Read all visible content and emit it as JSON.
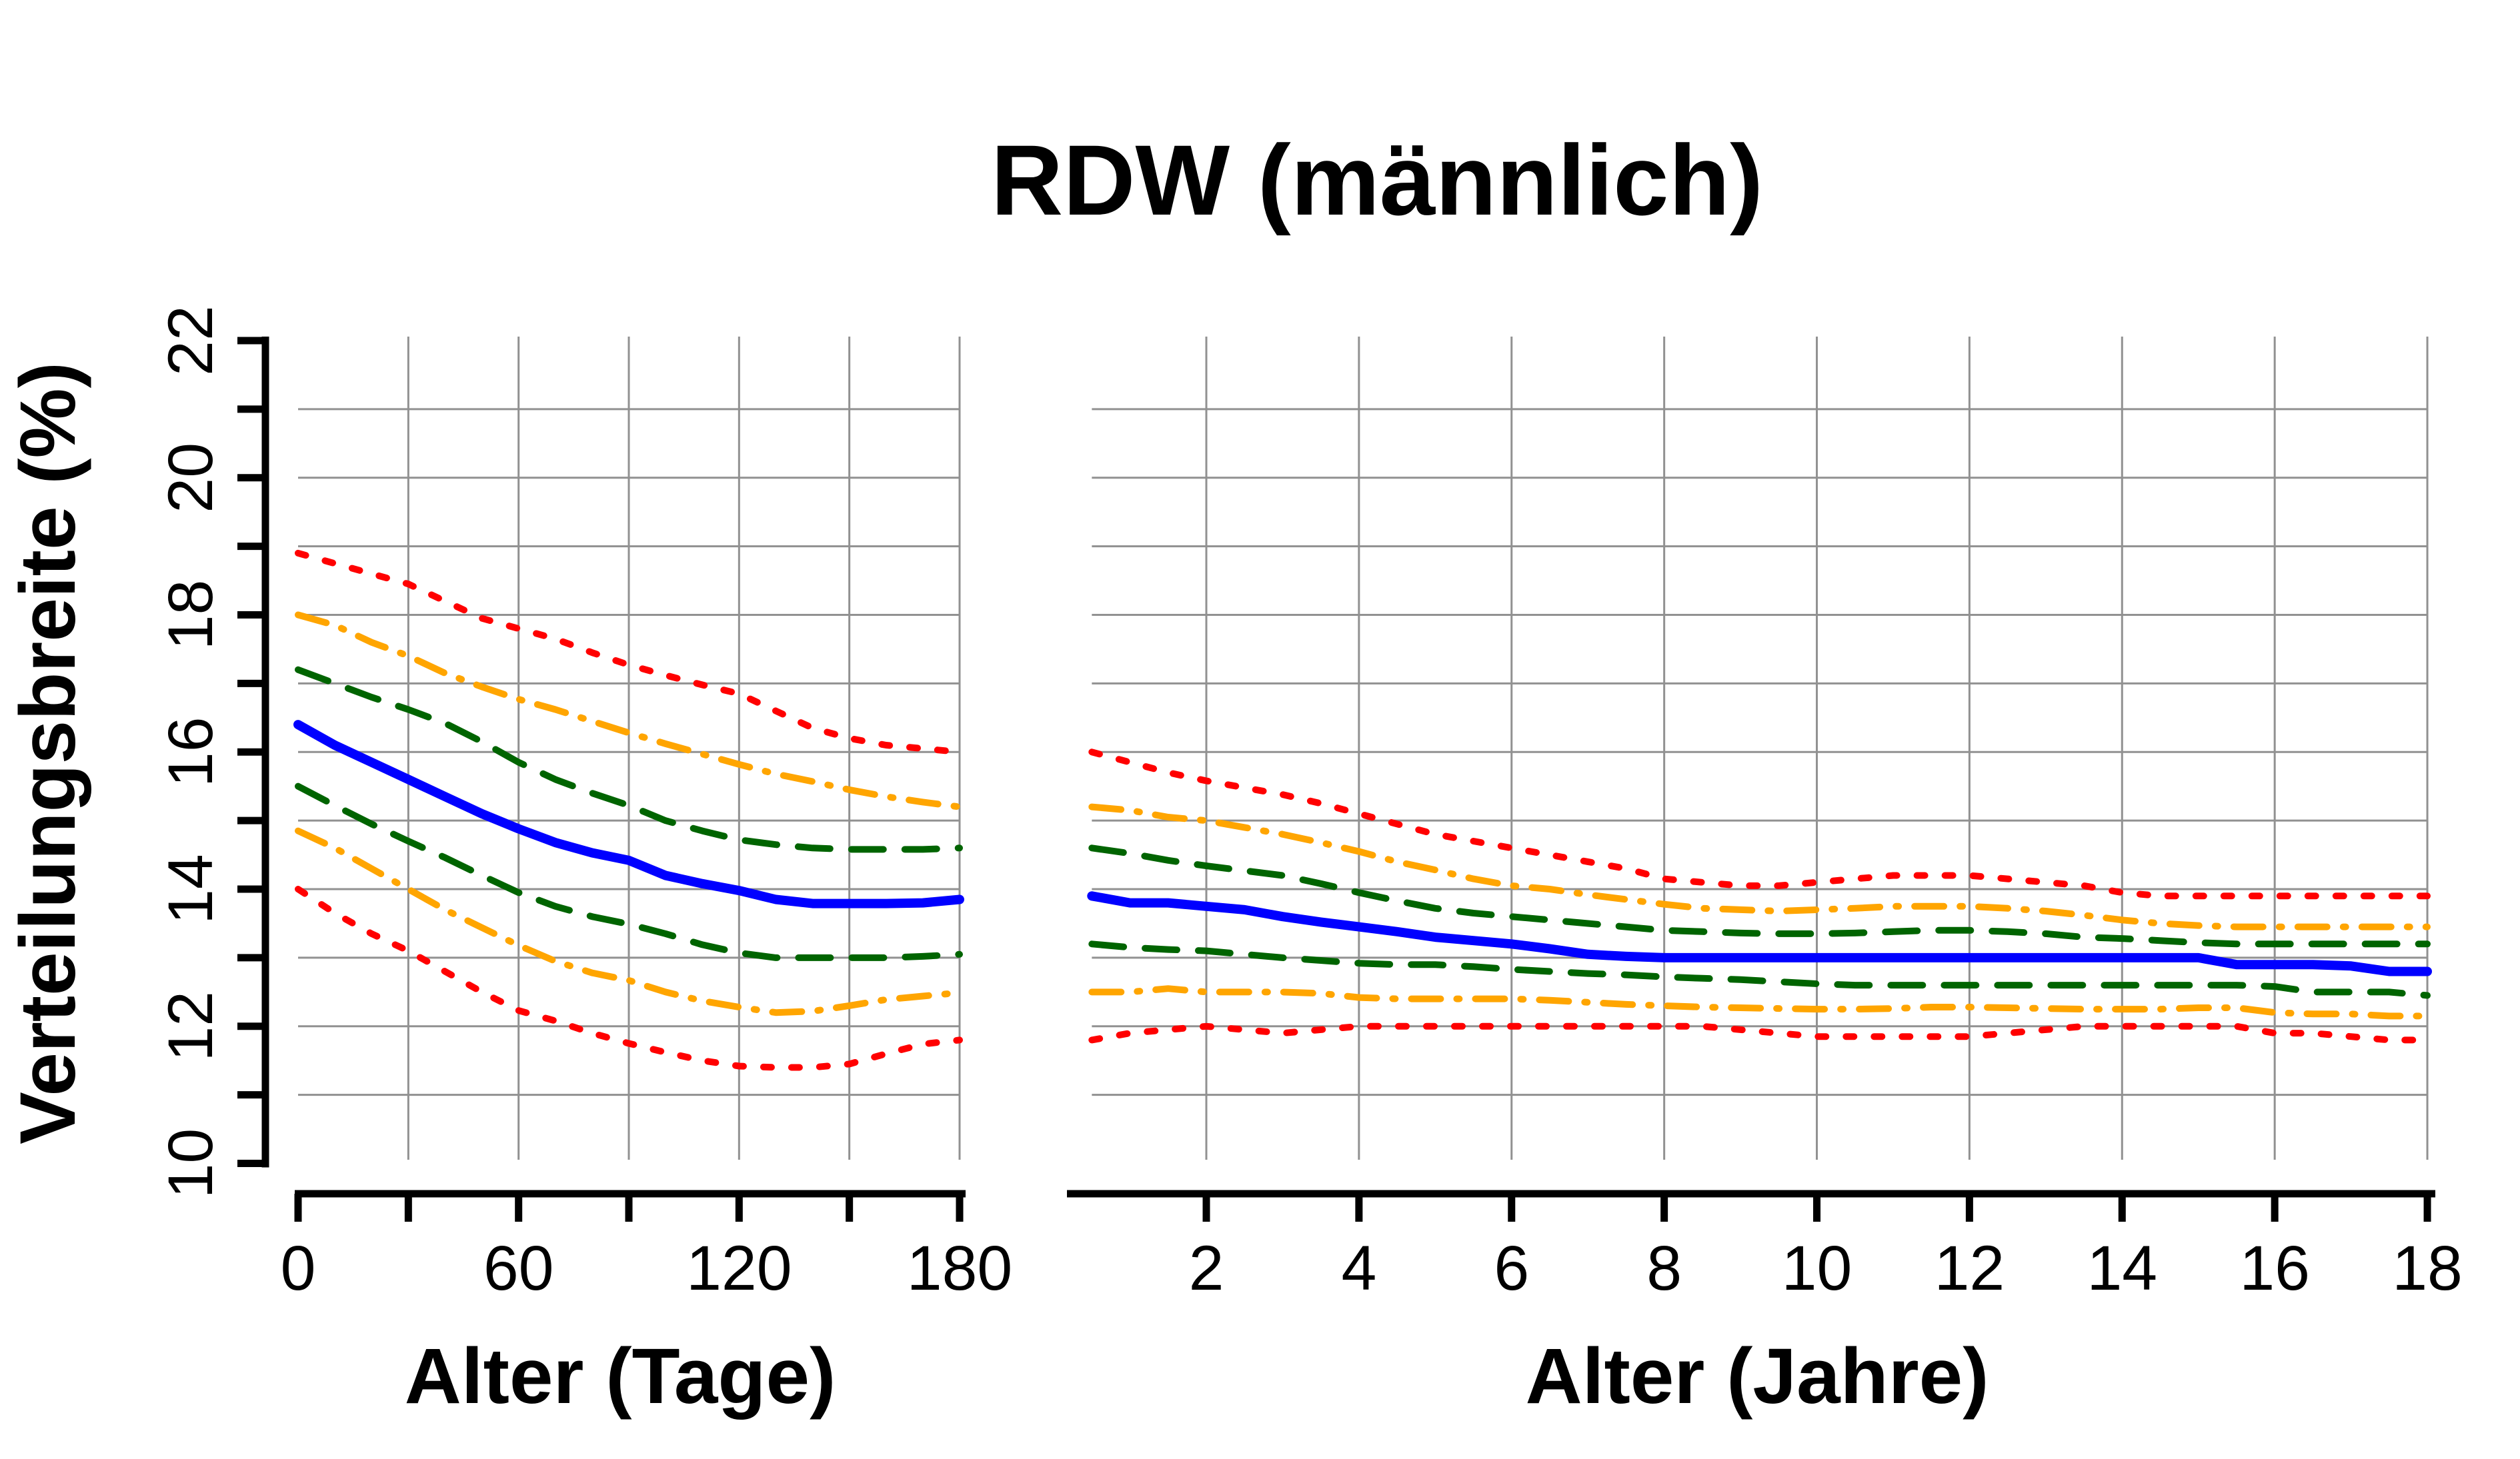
{
  "chart_data": {
    "type": "line",
    "title": "RDW (männlich)",
    "ylabel": "Verteilungsbreite (%)",
    "ylim": [
      10,
      22
    ],
    "grid": true,
    "background": "#ffffff",
    "grid_color": "#919191",
    "axis_color": "#000000",
    "yticks": [
      10,
      11,
      12,
      13,
      14,
      15,
      16,
      17,
      18,
      19,
      20,
      21,
      22
    ],
    "ytick_labels": [
      "10",
      "",
      "12",
      "",
      "14",
      "",
      "16",
      "",
      "18",
      "",
      "20",
      "",
      "22"
    ],
    "ygrid_values": [
      11,
      12,
      13,
      14,
      15,
      16,
      17,
      18,
      19,
      20,
      21
    ],
    "series_styles": [
      {
        "name": "red-dotted-upper",
        "color": "#ff0000",
        "linetype": "dotted",
        "width": 10
      },
      {
        "name": "orange-dashdot-upper",
        "color": "#ffa500",
        "linetype": "dotdash",
        "width": 10
      },
      {
        "name": "green-dashed-upper",
        "color": "#006400",
        "linetype": "dashed",
        "width": 10
      },
      {
        "name": "blue-solid-median",
        "color": "#0000ff",
        "linetype": "solid",
        "width": 14
      },
      {
        "name": "green-dashed-lower",
        "color": "#006400",
        "linetype": "dashed",
        "width": 10
      },
      {
        "name": "orange-dashdot-lower",
        "color": "#ffa500",
        "linetype": "dotdash",
        "width": 10
      },
      {
        "name": "red-dotted-lower",
        "color": "#ff0000",
        "linetype": "dotted",
        "width": 10
      }
    ],
    "panels": [
      {
        "name": "left-panel-days",
        "xlabel": "Alter (Tage)",
        "xticks": [
          0,
          30,
          60,
          90,
          120,
          150,
          180
        ],
        "xtick_labels": [
          "0",
          "",
          "60",
          "",
          "120",
          "",
          "180"
        ],
        "xgrid_values": [
          30,
          60,
          90,
          120,
          150,
          180
        ],
        "x": [
          0,
          10,
          20,
          30,
          40,
          50,
          60,
          70,
          80,
          90,
          100,
          110,
          120,
          130,
          140,
          150,
          160,
          170,
          180
        ],
        "series": [
          {
            "name": "red-dotted-upper",
            "values": [
              18.9,
              18.75,
              18.6,
              18.45,
              18.2,
              17.95,
              17.8,
              17.65,
              17.45,
              17.27,
              17.12,
              16.98,
              16.85,
              16.6,
              16.35,
              16.2,
              16.1,
              16.05,
              16.0
            ]
          },
          {
            "name": "orange-dashdot-upper",
            "values": [
              18.0,
              17.85,
              17.6,
              17.4,
              17.15,
              16.95,
              16.77,
              16.62,
              16.45,
              16.28,
              16.12,
              15.97,
              15.82,
              15.68,
              15.57,
              15.45,
              15.35,
              15.27,
              15.2
            ]
          },
          {
            "name": "green-dashed-upper",
            "values": [
              17.2,
              17.0,
              16.8,
              16.62,
              16.42,
              16.15,
              15.85,
              15.6,
              15.4,
              15.22,
              15.0,
              14.85,
              14.72,
              14.65,
              14.6,
              14.58,
              14.58,
              14.58,
              14.6
            ]
          },
          {
            "name": "blue-solid-median",
            "values": [
              16.4,
              16.1,
              15.85,
              15.6,
              15.35,
              15.1,
              14.88,
              14.68,
              14.53,
              14.42,
              14.2,
              14.08,
              13.98,
              13.85,
              13.79,
              13.79,
              13.79,
              13.8,
              13.85
            ]
          },
          {
            "name": "green-dashed-lower",
            "values": [
              15.5,
              15.22,
              14.95,
              14.7,
              14.46,
              14.2,
              13.95,
              13.75,
              13.6,
              13.49,
              13.35,
              13.19,
              13.07,
              13.0,
              13.0,
              13.0,
              13.0,
              13.02,
              13.05
            ]
          },
          {
            "name": "orange-dashdot-lower",
            "values": [
              14.85,
              14.6,
              14.3,
              14.0,
              13.7,
              13.44,
              13.18,
              12.95,
              12.78,
              12.67,
              12.5,
              12.37,
              12.28,
              12.2,
              12.22,
              12.3,
              12.39,
              12.44,
              12.49
            ]
          },
          {
            "name": "red-dotted-lower",
            "values": [
              14.0,
              13.65,
              13.35,
              13.1,
              12.8,
              12.5,
              12.23,
              12.08,
              11.9,
              11.75,
              11.62,
              11.5,
              11.42,
              11.4,
              11.4,
              11.45,
              11.6,
              11.74,
              11.8
            ]
          }
        ]
      },
      {
        "name": "right-panel-years",
        "xlabel": "Alter (Jahre)",
        "xticks": [
          2,
          4,
          6,
          8,
          10,
          12,
          14,
          16,
          18
        ],
        "xtick_labels": [
          "2",
          "4",
          "6",
          "8",
          "10",
          "12",
          "14",
          "16",
          "18"
        ],
        "xgrid_values": [
          2,
          4,
          6,
          8,
          10,
          12,
          14,
          16,
          18
        ],
        "x": [
          0.5,
          1,
          1.5,
          2,
          2.5,
          3,
          3.5,
          4,
          4.5,
          5,
          5.5,
          6,
          6.5,
          7,
          7.5,
          8,
          8.5,
          9,
          9.5,
          10,
          10.5,
          11,
          11.5,
          12,
          12.5,
          13,
          13.5,
          14,
          14.5,
          15,
          15.5,
          16,
          16.5,
          17,
          17.5,
          18
        ],
        "series": [
          {
            "name": "red-dotted-upper",
            "values": [
              16.0,
              15.85,
              15.7,
              15.58,
              15.48,
              15.38,
              15.25,
              15.1,
              14.95,
              14.8,
              14.7,
              14.6,
              14.5,
              14.4,
              14.3,
              14.15,
              14.1,
              14.05,
              14.05,
              14.1,
              14.15,
              14.2,
              14.2,
              14.2,
              14.15,
              14.1,
              14.05,
              13.95,
              13.9,
              13.9,
              13.9,
              13.9,
              13.9,
              13.9,
              13.9,
              13.9
            ]
          },
          {
            "name": "orange-dashdot-upper",
            "values": [
              15.2,
              15.15,
              15.05,
              15.0,
              14.9,
              14.8,
              14.68,
              14.55,
              14.4,
              14.28,
              14.15,
              14.05,
              14.0,
              13.92,
              13.85,
              13.78,
              13.72,
              13.7,
              13.68,
              13.7,
              13.72,
              13.75,
              13.75,
              13.75,
              13.72,
              13.68,
              13.62,
              13.55,
              13.5,
              13.47,
              13.45,
              13.45,
              13.45,
              13.45,
              13.45,
              13.45
            ]
          },
          {
            "name": "green-dashed-upper",
            "values": [
              14.6,
              14.52,
              14.42,
              14.34,
              14.27,
              14.2,
              14.08,
              13.95,
              13.83,
              13.72,
              13.65,
              13.6,
              13.55,
              13.5,
              13.45,
              13.4,
              13.38,
              13.36,
              13.35,
              13.35,
              13.36,
              13.38,
              13.4,
              13.4,
              13.38,
              13.35,
              13.3,
              13.28,
              13.25,
              13.22,
              13.2,
              13.2,
              13.2,
              13.2,
              13.2,
              13.2
            ]
          },
          {
            "name": "blue-solid-median",
            "values": [
              13.9,
              13.8,
              13.8,
              13.75,
              13.7,
              13.6,
              13.52,
              13.45,
              13.38,
              13.3,
              13.25,
              13.2,
              13.13,
              13.05,
              13.02,
              13.0,
              13.0,
              13.0,
              13.0,
              13.0,
              13.0,
              13.0,
              13.0,
              13.0,
              13.0,
              13.0,
              13.0,
              13.0,
              13.0,
              13.0,
              12.9,
              12.9,
              12.9,
              12.88,
              12.8,
              12.8
            ]
          },
          {
            "name": "green-dashed-lower",
            "values": [
              13.2,
              13.15,
              13.12,
              13.1,
              13.05,
              13.0,
              12.96,
              12.92,
              12.9,
              12.9,
              12.87,
              12.83,
              12.8,
              12.77,
              12.75,
              12.72,
              12.7,
              12.68,
              12.65,
              12.62,
              12.6,
              12.6,
              12.6,
              12.6,
              12.6,
              12.6,
              12.6,
              12.6,
              12.6,
              12.6,
              12.6,
              12.58,
              12.5,
              12.5,
              12.5,
              12.45
            ]
          },
          {
            "name": "orange-dashdot-lower",
            "values": [
              12.5,
              12.5,
              12.55,
              12.5,
              12.5,
              12.5,
              12.48,
              12.42,
              12.4,
              12.4,
              12.4,
              12.4,
              12.38,
              12.35,
              12.32,
              12.3,
              12.28,
              12.27,
              12.26,
              12.25,
              12.25,
              12.26,
              12.28,
              12.28,
              12.27,
              12.26,
              12.25,
              12.25,
              12.25,
              12.27,
              12.27,
              12.2,
              12.18,
              12.18,
              12.15,
              12.15
            ]
          },
          {
            "name": "red-dotted-lower",
            "values": [
              11.8,
              11.9,
              11.95,
              12.0,
              11.95,
              11.9,
              11.95,
              12.0,
              12.0,
              12.0,
              12.0,
              12.0,
              12.0,
              12.0,
              12.0,
              12.0,
              12.0,
              11.95,
              11.9,
              11.85,
              11.85,
              11.85,
              11.85,
              11.85,
              11.9,
              11.95,
              12.0,
              12.0,
              12.0,
              12.0,
              12.0,
              11.9,
              11.9,
              11.85,
              11.8,
              11.8
            ]
          }
        ]
      }
    ]
  }
}
